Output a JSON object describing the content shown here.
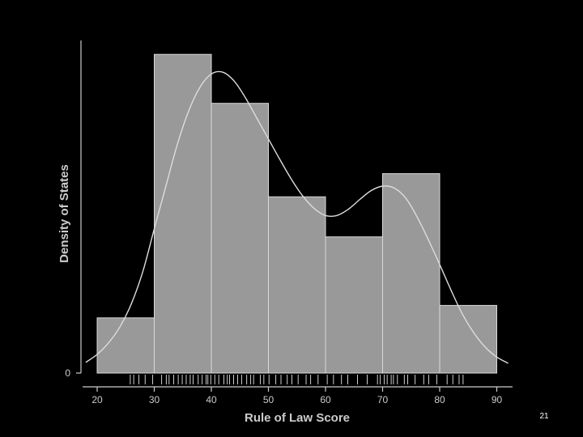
{
  "slide": {
    "number": "21"
  },
  "chart_data": {
    "type": "bar",
    "subtype": "histogram-with-density",
    "xlabel": "Rule of Law Score",
    "ylabel": "Density of States",
    "x_ticks": [
      20,
      30,
      40,
      50,
      60,
      70,
      80,
      90
    ],
    "y_ticks": [
      0
    ],
    "xlim": [
      17.5,
      92
    ],
    "ylim": [
      0,
      0.0375
    ],
    "bins": [
      {
        "start": 20,
        "end": 30,
        "density": 0.0062
      },
      {
        "start": 30,
        "end": 40,
        "density": 0.0358
      },
      {
        "start": 40,
        "end": 50,
        "density": 0.0303
      },
      {
        "start": 50,
        "end": 60,
        "density": 0.0198
      },
      {
        "start": 60,
        "end": 70,
        "density": 0.0153
      },
      {
        "start": 70,
        "end": 80,
        "density": 0.0224
      },
      {
        "start": 80,
        "end": 90,
        "density": 0.0076
      }
    ],
    "density_curve": {
      "x": [
        18,
        20,
        22,
        24,
        26,
        28,
        30,
        32,
        34,
        36,
        38,
        40,
        42,
        44,
        46,
        48,
        50,
        52,
        54,
        56,
        58,
        60,
        62,
        64,
        66,
        68,
        70,
        72,
        74,
        76,
        78,
        80,
        82,
        84,
        86,
        88,
        90,
        92
      ],
      "y": [
        0.0012,
        0.0021,
        0.0034,
        0.0052,
        0.0078,
        0.0114,
        0.0162,
        0.0209,
        0.0256,
        0.0294,
        0.0321,
        0.0336,
        0.0338,
        0.0328,
        0.0309,
        0.0286,
        0.0263,
        0.024,
        0.0218,
        0.0199,
        0.0185,
        0.0177,
        0.0177,
        0.0184,
        0.0195,
        0.0205,
        0.021,
        0.0208,
        0.0197,
        0.0176,
        0.015,
        0.0122,
        0.0093,
        0.0066,
        0.0045,
        0.0029,
        0.0018,
        0.0011
      ]
    },
    "rug": [
      25.8,
      26.4,
      27.3,
      28.4,
      29.7,
      31.3,
      32.1,
      32.6,
      33.4,
      34.2,
      34.9,
      35.6,
      36.3,
      36.8,
      37.7,
      38.4,
      39.1,
      39.4,
      39.9,
      40.6,
      41.3,
      42.2,
      42.8,
      43.2,
      43.9,
      44.6,
      45.3,
      46.2,
      46.9,
      47.4,
      48.6,
      49.2,
      50.1,
      51.3,
      52.2,
      53.3,
      54.1,
      55.2,
      56.6,
      57.4,
      58.7,
      60.3,
      61.4,
      62.8,
      63.9,
      65.6,
      67.3,
      69.1,
      69.6,
      70.3,
      70.8,
      71.5,
      71.9,
      72.6,
      73.8,
      74.4,
      75.7,
      77.2,
      78.1,
      79.5,
      81.3,
      82.3,
      83.4,
      84.1
    ],
    "colors": {
      "background": "#000000",
      "bars": "#999999",
      "bar_edge": "#d9d9d9",
      "curve": "#dddddd",
      "axis": "#cccccc",
      "text": "#cccccc"
    }
  }
}
